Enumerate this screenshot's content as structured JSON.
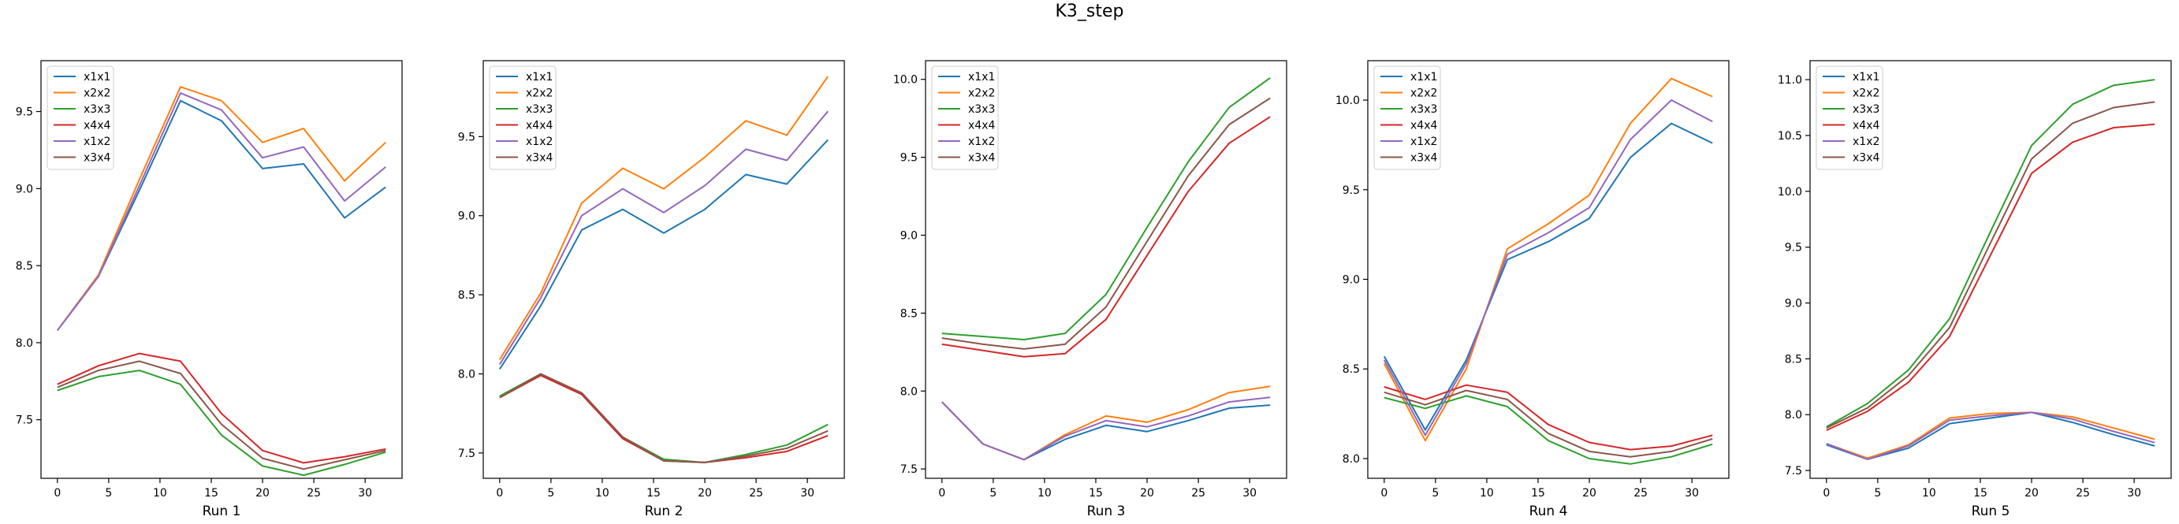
{
  "figure": {
    "title": "K3_step",
    "colors": {
      "x1x1": "#1f77b4",
      "x2x2": "#ff7f0e",
      "x3x3": "#2ca02c",
      "x4x4": "#d62728",
      "x1x2": "#9467bd",
      "x3x4": "#8c564b"
    }
  },
  "chart_data": [
    {
      "type": "line",
      "title": "",
      "xlabel": "Run 1",
      "ylabel": "",
      "legend": "top-left",
      "grid": false,
      "xlim": [
        -1.6,
        33.6
      ],
      "ylim": [
        7.12,
        9.83
      ],
      "xticks": [
        0,
        5,
        10,
        15,
        20,
        25,
        30
      ],
      "yticks": [
        7.5,
        8.0,
        8.5,
        9.0,
        9.5
      ],
      "ytick_labels": [
        "7.5",
        "8.0",
        "8.5",
        "9.0",
        "9.5"
      ],
      "x": [
        0,
        4,
        8,
        12,
        16,
        20,
        24,
        28,
        32
      ],
      "series": [
        {
          "name": "x1x1",
          "values": [
            8.08,
            8.43,
            8.99,
            9.57,
            9.44,
            9.13,
            9.16,
            8.81,
            9.01
          ]
        },
        {
          "name": "x2x2",
          "values": [
            8.08,
            8.44,
            9.06,
            9.66,
            9.57,
            9.3,
            9.39,
            9.05,
            9.3
          ]
        },
        {
          "name": "x3x3",
          "values": [
            7.69,
            7.78,
            7.82,
            7.73,
            7.4,
            7.2,
            7.14,
            7.21,
            7.29
          ]
        },
        {
          "name": "x4x4",
          "values": [
            7.73,
            7.85,
            7.93,
            7.88,
            7.54,
            7.3,
            7.22,
            7.26,
            7.31
          ]
        },
        {
          "name": "x1x2",
          "values": [
            8.08,
            8.43,
            9.02,
            9.62,
            9.51,
            9.2,
            9.27,
            8.92,
            9.14
          ]
        },
        {
          "name": "x3x4",
          "values": [
            7.71,
            7.82,
            7.88,
            7.8,
            7.47,
            7.25,
            7.18,
            7.24,
            7.3
          ]
        }
      ]
    },
    {
      "type": "line",
      "title": "",
      "xlabel": "Run 2",
      "ylabel": "",
      "legend": "top-left",
      "grid": false,
      "xlim": [
        -1.6,
        33.6
      ],
      "ylim": [
        7.34,
        9.98
      ],
      "xticks": [
        0,
        5,
        10,
        15,
        20,
        25,
        30
      ],
      "yticks": [
        7.5,
        8.0,
        8.5,
        9.0,
        9.5
      ],
      "ytick_labels": [
        "7.5",
        "8.0",
        "8.5",
        "9.0",
        "9.5"
      ],
      "x": [
        0,
        4,
        8,
        12,
        16,
        20,
        24,
        28,
        32
      ],
      "series": [
        {
          "name": "x1x1",
          "values": [
            8.03,
            8.43,
            8.91,
            9.04,
            8.89,
            9.04,
            9.26,
            9.2,
            9.48
          ]
        },
        {
          "name": "x2x2",
          "values": [
            8.09,
            8.51,
            9.08,
            9.3,
            9.17,
            9.37,
            9.6,
            9.51,
            9.88
          ]
        },
        {
          "name": "x3x3",
          "values": [
            7.86,
            8.0,
            7.88,
            7.6,
            7.46,
            7.44,
            7.49,
            7.55,
            7.68
          ]
        },
        {
          "name": "x4x4",
          "values": [
            7.85,
            7.99,
            7.87,
            7.59,
            7.45,
            7.44,
            7.47,
            7.51,
            7.61
          ]
        },
        {
          "name": "x1x2",
          "values": [
            8.06,
            8.48,
            9.0,
            9.17,
            9.02,
            9.19,
            9.42,
            9.35,
            9.66
          ]
        },
        {
          "name": "x3x4",
          "values": [
            7.85,
            8.0,
            7.88,
            7.6,
            7.45,
            7.44,
            7.48,
            7.53,
            7.64
          ]
        }
      ]
    },
    {
      "type": "line",
      "title": "",
      "xlabel": "Run 3",
      "ylabel": "",
      "legend": "top-left",
      "grid": false,
      "xlim": [
        -1.6,
        33.6
      ],
      "ylim": [
        7.44,
        10.12
      ],
      "xticks": [
        0,
        5,
        10,
        15,
        20,
        25,
        30
      ],
      "yticks": [
        7.5,
        8.0,
        8.5,
        9.0,
        9.5,
        10.0
      ],
      "ytick_labels": [
        "7.5",
        "8.0",
        "8.5",
        "9.0",
        "9.5",
        "10.0"
      ],
      "x": [
        0,
        4,
        8,
        12,
        16,
        20,
        24,
        28,
        32
      ],
      "series": [
        {
          "name": "x1x1",
          "values": [
            7.93,
            7.66,
            7.56,
            7.69,
            7.78,
            7.74,
            7.81,
            7.89,
            7.91
          ]
        },
        {
          "name": "x2x2",
          "values": [
            7.93,
            7.66,
            7.56,
            7.72,
            7.84,
            7.8,
            7.88,
            7.99,
            8.03
          ]
        },
        {
          "name": "x3x3",
          "values": [
            8.37,
            8.35,
            8.33,
            8.37,
            8.62,
            9.05,
            9.47,
            9.82,
            10.01
          ]
        },
        {
          "name": "x4x4",
          "values": [
            8.3,
            8.26,
            8.22,
            8.24,
            8.46,
            8.87,
            9.28,
            9.59,
            9.76
          ]
        },
        {
          "name": "x1x2",
          "values": [
            7.93,
            7.66,
            7.56,
            7.71,
            7.81,
            7.77,
            7.84,
            7.93,
            7.96
          ]
        },
        {
          "name": "x3x4",
          "values": [
            8.34,
            8.3,
            8.27,
            8.3,
            8.54,
            8.96,
            9.38,
            9.71,
            9.88
          ]
        }
      ]
    },
    {
      "type": "line",
      "title": "",
      "xlabel": "Run 4",
      "ylabel": "",
      "legend": "top-left",
      "grid": false,
      "xlim": [
        -1.6,
        33.6
      ],
      "ylim": [
        7.89,
        10.22
      ],
      "xticks": [
        0,
        5,
        10,
        15,
        20,
        25,
        30
      ],
      "yticks": [
        8.0,
        8.5,
        9.0,
        9.5,
        10.0
      ],
      "ytick_labels": [
        "8.0",
        "8.5",
        "9.0",
        "9.5",
        "10.0"
      ],
      "x": [
        0,
        4,
        8,
        12,
        16,
        20,
        24,
        28,
        32
      ],
      "series": [
        {
          "name": "x1x1",
          "values": [
            8.57,
            8.16,
            8.55,
            9.11,
            9.21,
            9.34,
            9.68,
            9.87,
            9.76
          ]
        },
        {
          "name": "x2x2",
          "values": [
            8.53,
            8.1,
            8.5,
            9.17,
            9.31,
            9.47,
            9.87,
            10.12,
            10.02
          ]
        },
        {
          "name": "x3x3",
          "values": [
            8.34,
            8.28,
            8.35,
            8.29,
            8.1,
            8.0,
            7.97,
            8.01,
            8.08
          ]
        },
        {
          "name": "x4x4",
          "values": [
            8.4,
            8.33,
            8.41,
            8.37,
            8.19,
            8.09,
            8.05,
            8.07,
            8.13
          ]
        },
        {
          "name": "x1x2",
          "values": [
            8.55,
            8.13,
            8.53,
            9.14,
            9.26,
            9.4,
            9.78,
            10.0,
            9.88
          ]
        },
        {
          "name": "x3x4",
          "values": [
            8.37,
            8.3,
            8.38,
            8.33,
            8.14,
            8.04,
            8.01,
            8.04,
            8.11
          ]
        }
      ]
    },
    {
      "type": "line",
      "title": "",
      "xlabel": "Run 5",
      "ylabel": "",
      "legend": "top-left",
      "grid": false,
      "xlim": [
        -1.6,
        33.6
      ],
      "ylim": [
        7.43,
        11.17
      ],
      "xticks": [
        0,
        5,
        10,
        15,
        20,
        25,
        30
      ],
      "yticks": [
        7.5,
        8.0,
        8.5,
        9.0,
        9.5,
        10.0,
        10.5,
        11.0
      ],
      "ytick_labels": [
        "7.5",
        "8.0",
        "8.5",
        "9.0",
        "9.5",
        "10.0",
        "10.5",
        "11.0"
      ],
      "x": [
        0,
        4,
        8,
        12,
        16,
        20,
        24,
        28,
        32
      ],
      "series": [
        {
          "name": "x1x1",
          "values": [
            7.73,
            7.6,
            7.7,
            7.92,
            7.97,
            8.02,
            7.93,
            7.82,
            7.72
          ]
        },
        {
          "name": "x2x2",
          "values": [
            7.74,
            7.61,
            7.73,
            7.97,
            8.01,
            8.02,
            7.98,
            7.88,
            7.78
          ]
        },
        {
          "name": "x3x3",
          "values": [
            7.89,
            8.1,
            8.4,
            8.86,
            9.64,
            10.41,
            10.78,
            10.95,
            11.0
          ]
        },
        {
          "name": "x4x4",
          "values": [
            7.86,
            8.03,
            8.29,
            8.7,
            9.43,
            10.16,
            10.44,
            10.57,
            10.6
          ]
        },
        {
          "name": "x1x2",
          "values": [
            7.74,
            7.6,
            7.72,
            7.95,
            7.99,
            8.02,
            7.96,
            7.85,
            7.75
          ]
        },
        {
          "name": "x3x4",
          "values": [
            7.88,
            8.06,
            8.35,
            8.78,
            9.54,
            10.29,
            10.61,
            10.75,
            10.8
          ]
        }
      ]
    }
  ]
}
